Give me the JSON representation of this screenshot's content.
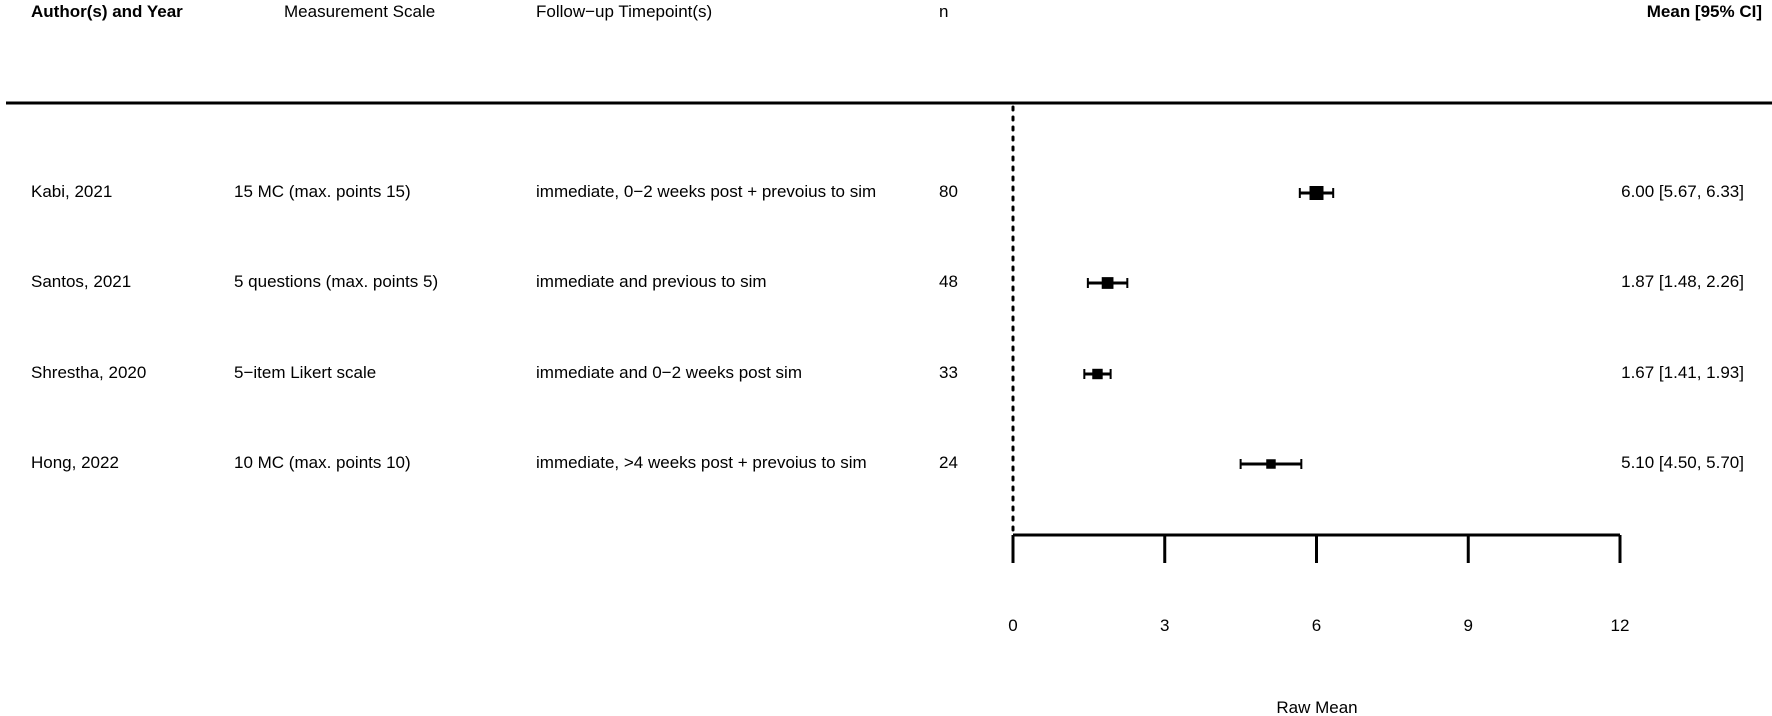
{
  "headers": {
    "author": "Author(s) and Year",
    "scale": "Measurement Scale",
    "followup": "Follow−up Timepoint(s)",
    "n": "n",
    "estimate": "Mean [95% CI]"
  },
  "studies": [
    {
      "author": "Kabi, 2021",
      "scale": "15 MC (max. points 15)",
      "followup": "immediate, 0−2 weeks post + prevoius to sim",
      "n": "80",
      "ci_text": "6.00 [5.67, 6.33]"
    },
    {
      "author": "Santos, 2021",
      "scale": "5 questions (max. points 5)",
      "followup": "immediate and previous to sim",
      "n": "48",
      "ci_text": "1.87 [1.48, 2.26]"
    },
    {
      "author": "Shrestha, 2020",
      "scale": "5−item Likert scale",
      "followup": "immediate and 0−2 weeks post sim",
      "n": "33",
      "ci_text": "1.67 [1.41, 1.93]"
    },
    {
      "author": "Hong, 2022",
      "scale": "10 MC (max. points 10)",
      "followup": "immediate, >4 weeks post + prevoius to sim",
      "n": "24",
      "ci_text": "5.10 [4.50, 5.70]"
    }
  ],
  "chart_data": {
    "type": "forest",
    "xlabel": "Raw Mean",
    "xlim": [
      0,
      12
    ],
    "xticks": [
      0,
      3,
      6,
      9,
      12
    ],
    "reference_line": 0,
    "series": [
      {
        "label": "Kabi, 2021",
        "mean": 6.0,
        "lower": 5.67,
        "upper": 6.33,
        "weight": 80
      },
      {
        "label": "Santos, 2021",
        "mean": 1.87,
        "lower": 1.48,
        "upper": 2.26,
        "weight": 48
      },
      {
        "label": "Shrestha, 2020",
        "mean": 1.67,
        "lower": 1.41,
        "upper": 1.93,
        "weight": 33
      },
      {
        "label": "Hong, 2022",
        "mean": 5.1,
        "lower": 4.5,
        "upper": 5.7,
        "weight": 24
      }
    ]
  }
}
